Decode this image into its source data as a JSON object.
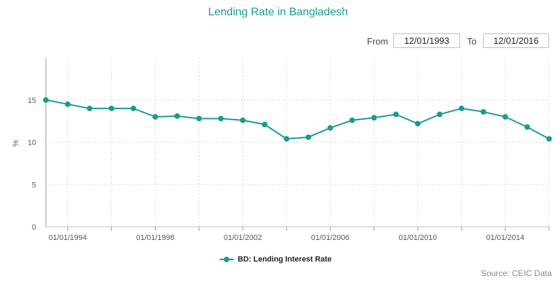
{
  "chart_data": {
    "type": "line",
    "title": "Lending Rate in Bangladesh",
    "ylabel": "%",
    "xlabel": "",
    "ylim": [
      0,
      20
    ],
    "yticks": [
      0,
      5,
      10,
      15
    ],
    "x": [
      "1993",
      "1994",
      "1995",
      "1996",
      "1997",
      "1998",
      "1999",
      "2000",
      "2001",
      "2002",
      "2003",
      "2004",
      "2005",
      "2006",
      "2007",
      "2008",
      "2009",
      "2010",
      "2011",
      "2012",
      "2013",
      "2014",
      "2015",
      "2016"
    ],
    "xtick_labels": [
      "01/01/1994",
      "01/01/1998",
      "01/01/2002",
      "01/01/2006",
      "01/01/2010",
      "01/01/2014"
    ],
    "series": [
      {
        "name": "BD: Lending Interest Rate",
        "values": [
          15.0,
          14.5,
          14.0,
          14.0,
          14.0,
          13.0,
          13.1,
          12.8,
          12.8,
          12.6,
          12.1,
          10.4,
          10.6,
          11.7,
          12.6,
          12.9,
          13.3,
          12.2,
          13.3,
          14.0,
          13.6,
          13.0,
          11.8,
          10.4
        ]
      }
    ],
    "grid": true,
    "legend": "bottom-center",
    "color": "#1a9a93"
  },
  "ui": {
    "from_label": "From",
    "from_value": "12/01/1993",
    "to_label": "To",
    "to_value": "12/01/2016",
    "source": "Source: CEIC Data"
  }
}
